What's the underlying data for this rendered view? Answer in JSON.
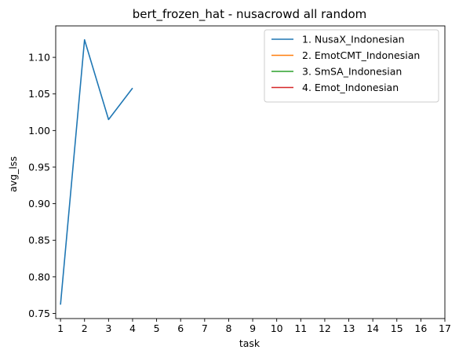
{
  "chart_data": {
    "type": "line",
    "title": "bert_frozen_hat - nusacrowd all random",
    "xlabel": "task",
    "ylabel": "avg_lss",
    "x_ticks": [
      1,
      2,
      3,
      4,
      5,
      6,
      7,
      8,
      9,
      10,
      11,
      12,
      13,
      14,
      15,
      16,
      17
    ],
    "y_ticks": [
      0.75,
      0.8,
      0.85,
      0.9,
      0.95,
      1.0,
      1.05,
      1.1
    ],
    "xlim": [
      0.8,
      17
    ],
    "ylim": [
      0.743,
      1.143
    ],
    "grid": false,
    "legend_position": "top-right",
    "series": [
      {
        "name": "1. NusaX_Indonesian",
        "color": "#1f77b4",
        "x": [
          1,
          2,
          3,
          4
        ],
        "values": [
          0.762,
          1.124,
          1.015,
          1.058
        ]
      },
      {
        "name": "2. EmotCMT_Indonesian",
        "color": "#ff7f0e",
        "x": [],
        "values": []
      },
      {
        "name": "3. SmSA_Indonesian",
        "color": "#2ca02c",
        "x": [],
        "values": []
      },
      {
        "name": "4. Emot_Indonesian",
        "color": "#d62728",
        "x": [],
        "values": []
      }
    ]
  }
}
